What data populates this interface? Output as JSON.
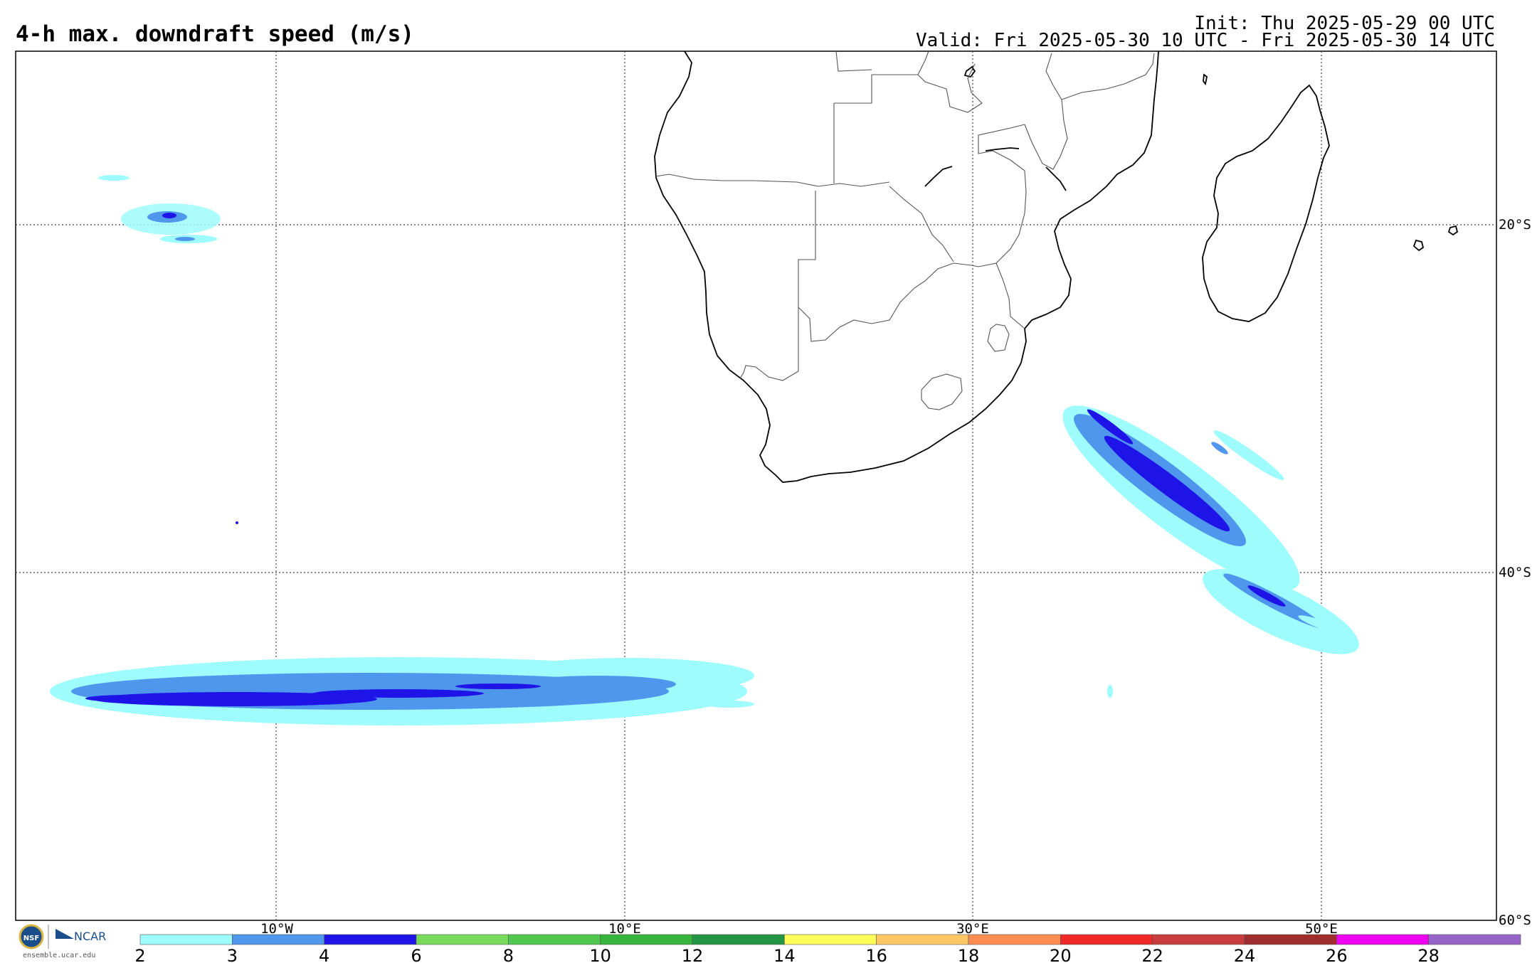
{
  "header": {
    "title": "4-h max. downdraft speed (m/s)",
    "init": "Init: Thu 2025-05-29 00 UTC",
    "valid": "Valid: Fri 2025-05-30 10 UTC - Fri 2025-05-30 14 UTC"
  },
  "map": {
    "lon_labels": [
      "10°W",
      "10°E",
      "30°E",
      "50°E"
    ],
    "lat_labels": [
      "20°S",
      "40°S",
      "60°S"
    ]
  },
  "colorbar": {
    "labels": [
      "2",
      "3",
      "4",
      "6",
      "8",
      "10",
      "12",
      "14",
      "16",
      "18",
      "20",
      "22",
      "24",
      "26",
      "28"
    ],
    "colors": [
      "#9ffcfc",
      "#4f97ec",
      "#1e14e8",
      "#78dc5a",
      "#50c850",
      "#37b43c",
      "#239646",
      "#ffff5a",
      "#ffc864",
      "#ff8c50",
      "#f02828",
      "#c83c3c",
      "#a02d2d",
      "#f000f0",
      "#9664c8"
    ]
  },
  "logos": {
    "nsf": "NSF",
    "ncar": "NCAR",
    "site": "ensemble.ucar.edu"
  }
}
